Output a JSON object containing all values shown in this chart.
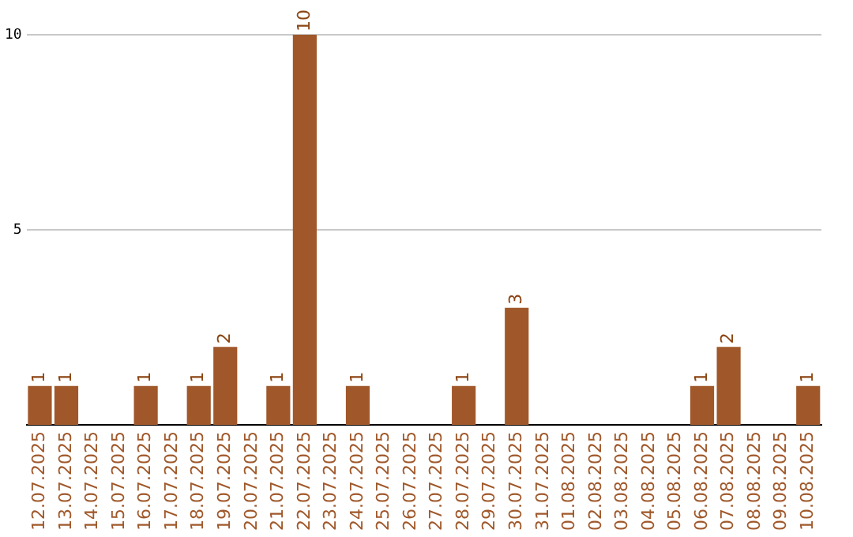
{
  "chart_data": {
    "type": "bar",
    "categories": [
      "12.07.2025",
      "13.07.2025",
      "14.07.2025",
      "15.07.2025",
      "16.07.2025",
      "17.07.2025",
      "18.07.2025",
      "19.07.2025",
      "20.07.2025",
      "21.07.2025",
      "22.07.2025",
      "23.07.2025",
      "24.07.2025",
      "25.07.2025",
      "26.07.2025",
      "27.07.2025",
      "28.07.2025",
      "29.07.2025",
      "30.07.2025",
      "31.07.2025",
      "01.08.2025",
      "02.08.2025",
      "03.08.2025",
      "04.08.2025",
      "05.08.2025",
      "06.08.2025",
      "07.08.2025",
      "08.08.2025",
      "09.08.2025",
      "10.08.2025"
    ],
    "values": [
      1,
      1,
      0,
      0,
      1,
      0,
      1,
      2,
      0,
      1,
      10,
      0,
      1,
      0,
      0,
      0,
      1,
      0,
      3,
      0,
      0,
      0,
      0,
      0,
      0,
      1,
      2,
      0,
      0,
      1
    ],
    "value_labels": [
      "1",
      "1",
      null,
      null,
      "1",
      null,
      "1",
      "2",
      null,
      "1",
      "10",
      null,
      "1",
      null,
      null,
      null,
      "1",
      null,
      "3",
      null,
      null,
      null,
      null,
      null,
      null,
      "1",
      "2",
      null,
      null,
      "1"
    ],
    "color": "#a0582a",
    "ylim": [
      0,
      10
    ],
    "yticks": [
      5,
      10
    ],
    "grid": "y",
    "legend": false
  }
}
